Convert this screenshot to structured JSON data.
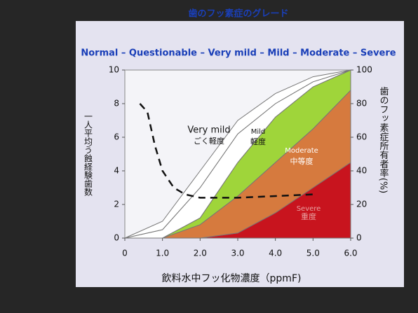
{
  "chart_data": {
    "type": "area",
    "title": "歯のフッ素症のグレード",
    "subtitle": "Normal – Questionable – Very mild – Mild – Moderate – Severe",
    "x_label": "飲料水中フッ化物濃度（ppmF)",
    "y_label": "一人平均う蝕経験歯数",
    "y2_label": "歯のフッ素症所有者率(%)",
    "x": [
      0,
      1,
      2,
      3,
      4,
      5,
      6
    ],
    "xlim": [
      0,
      6
    ],
    "xticks": [
      0,
      {
        "value": 1,
        "label": "1.0"
      },
      {
        "value": 2,
        "label": "2.0"
      },
      {
        "value": 3,
        "label": "3.0"
      },
      {
        "value": 4,
        "label": "4.0"
      },
      {
        "value": 5,
        "label": "5.0"
      },
      {
        "value": 6,
        "label": "6.0"
      }
    ],
    "ylim": [
      0,
      10
    ],
    "yticks": [
      0,
      2,
      4,
      6,
      8,
      10
    ],
    "y2lim": [
      0,
      100
    ],
    "y2ticks": [
      0,
      20,
      40,
      60,
      80,
      100
    ],
    "stacked": true,
    "series": [
      {
        "name": "Severe",
        "label_ja": "重度",
        "color": "#c8141e",
        "axis": "y2",
        "values": [
          0,
          0,
          0,
          3,
          15,
          30,
          45
        ]
      },
      {
        "name": "Moderate",
        "label_ja": "中等度",
        "color": "#d67a3e",
        "axis": "y2",
        "values": [
          0,
          0,
          8,
          22,
          30,
          35,
          43
        ]
      },
      {
        "name": "Mild",
        "label_ja": "軽度",
        "color": "#9fd53a",
        "axis": "y2",
        "values": [
          0,
          0,
          4,
          20,
          27,
          25,
          12
        ]
      },
      {
        "name": "Very mild",
        "label_ja": "ごく軽度",
        "color": "#ffffff",
        "axis": "y2",
        "values": [
          0,
          5,
          18,
          17,
          8,
          3,
          0
        ]
      },
      {
        "color": "#ffffff",
        "axis": "y2",
        "values": [
          0,
          5,
          10,
          8,
          6,
          3,
          0
        ]
      }
    ],
    "dmft": {
      "axis": "y",
      "style": "dashed",
      "color": "#111111",
      "x": [
        0.4,
        0.6,
        0.8,
        1.0,
        1.3,
        1.6,
        2.0,
        3.0,
        4.0,
        5.0
      ],
      "values": [
        8,
        7.5,
        5.5,
        4,
        3,
        2.6,
        2.4,
        2.4,
        2.5,
        2.6
      ]
    }
  }
}
